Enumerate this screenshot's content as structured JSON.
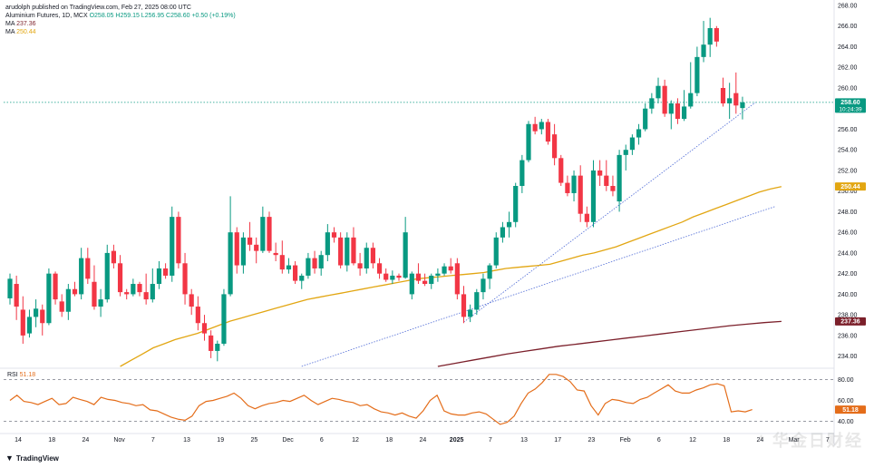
{
  "header": {
    "publisher": "arudolph published on TradingView.com, Feb 27, 2025 08:00 UTC",
    "instrument": "Aluminium Futures, 1D, MCX",
    "ohlc": "O258.05 H259.15 L256.95 C258.60 +0.50 (+0.19%)",
    "ma1_label": "MA",
    "ma1_value": "237.36",
    "ma2_label": "MA",
    "ma2_value": "250.44"
  },
  "colors": {
    "up": "#089981",
    "down": "#f23645",
    "ma_fast": "#e2a612",
    "ma_slow": "#7b1f2a",
    "rsi": "#e46d1a",
    "trendline": "#4f6bd6",
    "price_line": "#089981"
  },
  "price_badges": {
    "last_price": "258.60",
    "countdown": "10:24:39",
    "ma_fast": "250.44",
    "ma_slow": "237.36"
  },
  "rsi": {
    "label": "RSI",
    "value": "51.18",
    "levels": [
      "80.00",
      "60.00",
      "40.00"
    ]
  },
  "footer": {
    "logo": "TradingView"
  },
  "watermark": "ᐩ 华金日财经",
  "chart_data": {
    "type": "candlestick",
    "y_axis": {
      "min": 233,
      "max": 268,
      "ticks": [
        "268.00",
        "266.00",
        "264.00",
        "262.00",
        "260.00",
        "258.00",
        "256.00",
        "254.00",
        "252.00",
        "250.00",
        "248.00",
        "246.00",
        "244.00",
        "242.00",
        "240.00",
        "238.00",
        "236.00",
        "234.00"
      ]
    },
    "x_labels": [
      "14",
      "18",
      "24",
      "Nov",
      "7",
      "13",
      "19",
      "25",
      "Dec",
      "6",
      "12",
      "18",
      "24",
      "2025",
      "7",
      "13",
      "17",
      "23",
      "Feb",
      "6",
      "12",
      "18",
      "24",
      "Mar",
      "7"
    ],
    "candles": [
      {
        "o": 239.6,
        "h": 242.0,
        "l": 239.0,
        "c": 241.5
      },
      {
        "o": 241.0,
        "h": 241.8,
        "l": 237.5,
        "c": 238.8
      },
      {
        "o": 238.5,
        "h": 239.8,
        "l": 235.2,
        "c": 236.0
      },
      {
        "o": 236.2,
        "h": 238.5,
        "l": 235.8,
        "c": 237.8
      },
      {
        "o": 237.8,
        "h": 239.5,
        "l": 236.8,
        "c": 238.6
      },
      {
        "o": 238.5,
        "h": 239.0,
        "l": 236.0,
        "c": 237.2
      },
      {
        "o": 237.2,
        "h": 242.5,
        "l": 237.0,
        "c": 242.0
      },
      {
        "o": 242.0,
        "h": 242.2,
        "l": 239.0,
        "c": 239.5
      },
      {
        "o": 239.3,
        "h": 240.0,
        "l": 237.8,
        "c": 238.3
      },
      {
        "o": 238.3,
        "h": 241.0,
        "l": 237.5,
        "c": 240.5
      },
      {
        "o": 240.5,
        "h": 241.2,
        "l": 239.8,
        "c": 240.0
      },
      {
        "o": 240.0,
        "h": 244.5,
        "l": 239.5,
        "c": 243.5
      },
      {
        "o": 243.5,
        "h": 244.5,
        "l": 241.0,
        "c": 241.5
      },
      {
        "o": 241.2,
        "h": 242.8,
        "l": 238.5,
        "c": 238.8
      },
      {
        "o": 238.8,
        "h": 240.5,
        "l": 237.8,
        "c": 239.5
      },
      {
        "o": 239.5,
        "h": 244.8,
        "l": 239.2,
        "c": 244.0
      },
      {
        "o": 244.2,
        "h": 244.8,
        "l": 242.5,
        "c": 243.0
      },
      {
        "o": 243.0,
        "h": 243.8,
        "l": 239.8,
        "c": 240.2
      },
      {
        "o": 240.2,
        "h": 240.5,
        "l": 239.5,
        "c": 240.0
      },
      {
        "o": 240.0,
        "h": 241.5,
        "l": 239.8,
        "c": 241.0
      },
      {
        "o": 241.0,
        "h": 241.2,
        "l": 239.8,
        "c": 240.2
      },
      {
        "o": 240.2,
        "h": 242.0,
        "l": 239.0,
        "c": 239.5
      },
      {
        "o": 239.5,
        "h": 242.5,
        "l": 239.2,
        "c": 241.0
      },
      {
        "o": 241.0,
        "h": 243.2,
        "l": 240.5,
        "c": 242.5
      },
      {
        "o": 242.5,
        "h": 243.0,
        "l": 241.5,
        "c": 241.8
      },
      {
        "o": 241.8,
        "h": 248.5,
        "l": 241.2,
        "c": 247.5
      },
      {
        "o": 247.5,
        "h": 248.0,
        "l": 242.5,
        "c": 243.0
      },
      {
        "o": 243.0,
        "h": 244.0,
        "l": 239.0,
        "c": 240.0
      },
      {
        "o": 240.0,
        "h": 240.5,
        "l": 238.0,
        "c": 238.8
      },
      {
        "o": 238.8,
        "h": 239.8,
        "l": 236.5,
        "c": 237.2
      },
      {
        "o": 237.2,
        "h": 238.0,
        "l": 235.5,
        "c": 236.2
      },
      {
        "o": 236.0,
        "h": 236.5,
        "l": 233.8,
        "c": 234.5
      },
      {
        "o": 234.5,
        "h": 235.5,
        "l": 233.5,
        "c": 235.2
      },
      {
        "o": 235.2,
        "h": 240.5,
        "l": 235.0,
        "c": 240.0
      },
      {
        "o": 240.0,
        "h": 249.5,
        "l": 239.8,
        "c": 246.0
      },
      {
        "o": 246.0,
        "h": 246.5,
        "l": 242.0,
        "c": 242.8
      },
      {
        "o": 242.8,
        "h": 246.0,
        "l": 242.0,
        "c": 245.5
      },
      {
        "o": 245.5,
        "h": 247.0,
        "l": 244.2,
        "c": 244.8
      },
      {
        "o": 244.8,
        "h": 245.5,
        "l": 243.0,
        "c": 244.2
      },
      {
        "o": 244.2,
        "h": 248.5,
        "l": 244.0,
        "c": 247.5
      },
      {
        "o": 247.5,
        "h": 248.0,
        "l": 244.0,
        "c": 244.2
      },
      {
        "o": 244.0,
        "h": 245.0,
        "l": 243.2,
        "c": 243.8
      },
      {
        "o": 243.8,
        "h": 245.2,
        "l": 242.0,
        "c": 242.4
      },
      {
        "o": 242.4,
        "h": 243.5,
        "l": 242.0,
        "c": 242.8
      },
      {
        "o": 242.8,
        "h": 243.2,
        "l": 241.0,
        "c": 241.3
      },
      {
        "o": 241.3,
        "h": 242.0,
        "l": 240.5,
        "c": 241.8
      },
      {
        "o": 241.8,
        "h": 244.0,
        "l": 241.5,
        "c": 243.5
      },
      {
        "o": 243.5,
        "h": 244.2,
        "l": 242.0,
        "c": 242.5
      },
      {
        "o": 242.5,
        "h": 244.2,
        "l": 241.8,
        "c": 243.8
      },
      {
        "o": 243.8,
        "h": 246.8,
        "l": 243.2,
        "c": 246.0
      },
      {
        "o": 246.0,
        "h": 246.5,
        "l": 245.0,
        "c": 245.5
      },
      {
        "o": 245.5,
        "h": 246.0,
        "l": 242.5,
        "c": 242.8
      },
      {
        "o": 242.8,
        "h": 246.0,
        "l": 242.2,
        "c": 245.5
      },
      {
        "o": 245.5,
        "h": 246.5,
        "l": 242.8,
        "c": 243.0
      },
      {
        "o": 243.0,
        "h": 244.0,
        "l": 241.8,
        "c": 242.5
      },
      {
        "o": 242.5,
        "h": 245.0,
        "l": 242.0,
        "c": 244.5
      },
      {
        "o": 244.5,
        "h": 245.0,
        "l": 242.5,
        "c": 243.0
      },
      {
        "o": 243.0,
        "h": 243.5,
        "l": 241.5,
        "c": 242.0
      },
      {
        "o": 242.0,
        "h": 242.5,
        "l": 241.2,
        "c": 241.4
      },
      {
        "o": 241.4,
        "h": 242.3,
        "l": 241.0,
        "c": 241.8
      },
      {
        "o": 241.8,
        "h": 242.0,
        "l": 241.3,
        "c": 241.6
      },
      {
        "o": 241.6,
        "h": 247.5,
        "l": 241.5,
        "c": 246.0
      },
      {
        "o": 240.0,
        "h": 242.2,
        "l": 239.5,
        "c": 242.0
      },
      {
        "o": 242.0,
        "h": 243.0,
        "l": 241.0,
        "c": 241.3
      },
      {
        "o": 241.3,
        "h": 242.0,
        "l": 240.8,
        "c": 241.0
      },
      {
        "o": 241.0,
        "h": 242.0,
        "l": 240.5,
        "c": 241.8
      },
      {
        "o": 241.8,
        "h": 242.5,
        "l": 241.2,
        "c": 242.0
      },
      {
        "o": 242.0,
        "h": 243.0,
        "l": 241.8,
        "c": 242.7
      },
      {
        "o": 242.7,
        "h": 243.5,
        "l": 242.0,
        "c": 242.3
      },
      {
        "o": 243.0,
        "h": 243.5,
        "l": 239.5,
        "c": 240.0
      },
      {
        "o": 240.0,
        "h": 240.8,
        "l": 237.2,
        "c": 237.8
      },
      {
        "o": 237.8,
        "h": 239.0,
        "l": 237.3,
        "c": 238.5
      },
      {
        "o": 238.5,
        "h": 240.5,
        "l": 238.0,
        "c": 240.2
      },
      {
        "o": 240.2,
        "h": 242.0,
        "l": 239.5,
        "c": 241.5
      },
      {
        "o": 241.5,
        "h": 243.0,
        "l": 240.5,
        "c": 242.8
      },
      {
        "o": 242.8,
        "h": 246.0,
        "l": 242.5,
        "c": 245.5
      },
      {
        "o": 245.5,
        "h": 247.0,
        "l": 245.0,
        "c": 246.5
      },
      {
        "o": 246.5,
        "h": 248.0,
        "l": 245.5,
        "c": 247.0
      },
      {
        "o": 247.0,
        "h": 250.8,
        "l": 246.5,
        "c": 250.5
      },
      {
        "o": 250.5,
        "h": 253.5,
        "l": 249.8,
        "c": 253.0
      },
      {
        "o": 253.0,
        "h": 256.8,
        "l": 252.8,
        "c": 256.5
      },
      {
        "o": 256.5,
        "h": 257.2,
        "l": 255.5,
        "c": 255.8
      },
      {
        "o": 256.0,
        "h": 257.0,
        "l": 255.5,
        "c": 256.7
      },
      {
        "o": 256.7,
        "h": 257.0,
        "l": 254.5,
        "c": 254.8
      },
      {
        "o": 255.5,
        "h": 256.5,
        "l": 252.5,
        "c": 253.2
      },
      {
        "o": 253.2,
        "h": 253.5,
        "l": 250.5,
        "c": 250.8
      },
      {
        "o": 250.8,
        "h": 251.5,
        "l": 249.5,
        "c": 249.8
      },
      {
        "o": 249.8,
        "h": 252.0,
        "l": 249.0,
        "c": 251.5
      },
      {
        "o": 251.5,
        "h": 252.5,
        "l": 247.0,
        "c": 247.8
      },
      {
        "o": 247.8,
        "h": 248.5,
        "l": 246.5,
        "c": 247.0
      },
      {
        "o": 247.0,
        "h": 253.0,
        "l": 246.5,
        "c": 252.0
      },
      {
        "o": 252.0,
        "h": 253.0,
        "l": 250.5,
        "c": 251.5
      },
      {
        "o": 251.5,
        "h": 253.0,
        "l": 250.0,
        "c": 250.5
      },
      {
        "o": 250.5,
        "h": 251.5,
        "l": 249.5,
        "c": 250.0
      },
      {
        "o": 249.0,
        "h": 254.0,
        "l": 248.0,
        "c": 253.5
      },
      {
        "o": 253.5,
        "h": 254.5,
        "l": 252.0,
        "c": 254.0
      },
      {
        "o": 254.0,
        "h": 255.5,
        "l": 253.5,
        "c": 255.2
      },
      {
        "o": 255.2,
        "h": 256.5,
        "l": 254.5,
        "c": 256.0
      },
      {
        "o": 256.0,
        "h": 258.5,
        "l": 255.8,
        "c": 258.0
      },
      {
        "o": 258.0,
        "h": 259.5,
        "l": 257.5,
        "c": 259.0
      },
      {
        "o": 259.0,
        "h": 261.0,
        "l": 258.5,
        "c": 260.2
      },
      {
        "o": 260.2,
        "h": 260.8,
        "l": 257.2,
        "c": 257.5
      },
      {
        "o": 257.5,
        "h": 258.8,
        "l": 256.0,
        "c": 258.5
      },
      {
        "o": 258.5,
        "h": 259.0,
        "l": 256.5,
        "c": 257.0
      },
      {
        "o": 257.0,
        "h": 259.8,
        "l": 256.8,
        "c": 258.2
      },
      {
        "o": 258.2,
        "h": 262.5,
        "l": 258.0,
        "c": 259.5
      },
      {
        "o": 259.5,
        "h": 264.0,
        "l": 259.2,
        "c": 263.0
      },
      {
        "o": 263.0,
        "h": 266.5,
        "l": 262.5,
        "c": 264.2
      },
      {
        "o": 264.2,
        "h": 266.8,
        "l": 263.0,
        "c": 265.8
      },
      {
        "o": 265.8,
        "h": 266.0,
        "l": 264.0,
        "c": 264.5
      },
      {
        "o": 260.0,
        "h": 261.0,
        "l": 258.2,
        "c": 258.5
      },
      {
        "o": 258.5,
        "h": 260.5,
        "l": 257.0,
        "c": 259.0
      },
      {
        "o": 259.5,
        "h": 261.5,
        "l": 257.5,
        "c": 258.3
      },
      {
        "o": 258.05,
        "h": 259.15,
        "l": 256.95,
        "c": 258.6
      }
    ],
    "ma_fast": [
      233.0,
      233.6,
      234.2,
      234.8,
      235.2,
      235.6,
      235.9,
      236.2,
      236.6,
      237.0,
      237.4,
      237.7,
      238.0,
      238.3,
      238.6,
      238.9,
      239.2,
      239.5,
      239.7,
      239.9,
      240.1,
      240.3,
      240.5,
      240.7,
      240.9,
      241.1,
      241.3,
      241.5,
      241.6,
      241.7,
      241.8,
      241.9,
      242.0,
      242.1,
      242.3,
      242.5,
      242.6,
      242.7,
      242.8,
      242.9,
      243.2,
      243.5,
      243.8,
      244.0,
      244.3,
      244.6,
      245.0,
      245.4,
      245.8,
      246.2,
      246.6,
      247.0,
      247.5,
      247.9,
      248.3,
      248.7,
      249.1,
      249.5,
      249.9,
      250.2,
      250.44
    ],
    "ma_slow": [
      233.0,
      233.3,
      233.6,
      233.9,
      234.2,
      234.45,
      234.7,
      234.95,
      235.15,
      235.35,
      235.55,
      235.75,
      235.95,
      236.15,
      236.35,
      236.55,
      236.75,
      236.95,
      237.1,
      237.25,
      237.36
    ],
    "trendlines": [
      {
        "from": {
          "i": 70,
          "v": 237.3
        },
        "to": {
          "i": 115,
          "v": 258.6
        }
      },
      {
        "from": {
          "i": 45,
          "v": 233.0
        },
        "to": {
          "i": 118,
          "v": 248.5
        }
      }
    ],
    "rsi": [
      60,
      65,
      59,
      58,
      56,
      59,
      62,
      56,
      57,
      63,
      61,
      59,
      56,
      63,
      61,
      60,
      58,
      57,
      55,
      56,
      51,
      50,
      47,
      44,
      42,
      41,
      45,
      55,
      59,
      60,
      62,
      64,
      67,
      62,
      55,
      52,
      55,
      57,
      58,
      60,
      59,
      62,
      65,
      60,
      56,
      59,
      62,
      61,
      59,
      58,
      55,
      56,
      52,
      49,
      48,
      46,
      48,
      45,
      43,
      50,
      60,
      65,
      50,
      47,
      46,
      46,
      48,
      49,
      47,
      42,
      37,
      39,
      45,
      57,
      67,
      71,
      77,
      85,
      85,
      83,
      78,
      70,
      69,
      55,
      46,
      57,
      61,
      60,
      58,
      57,
      61,
      63,
      67,
      71,
      75,
      69,
      67,
      67,
      70,
      72,
      75,
      76,
      74,
      49,
      50,
      49,
      51.18
    ],
    "rsi_range": [
      30,
      90
    ]
  }
}
